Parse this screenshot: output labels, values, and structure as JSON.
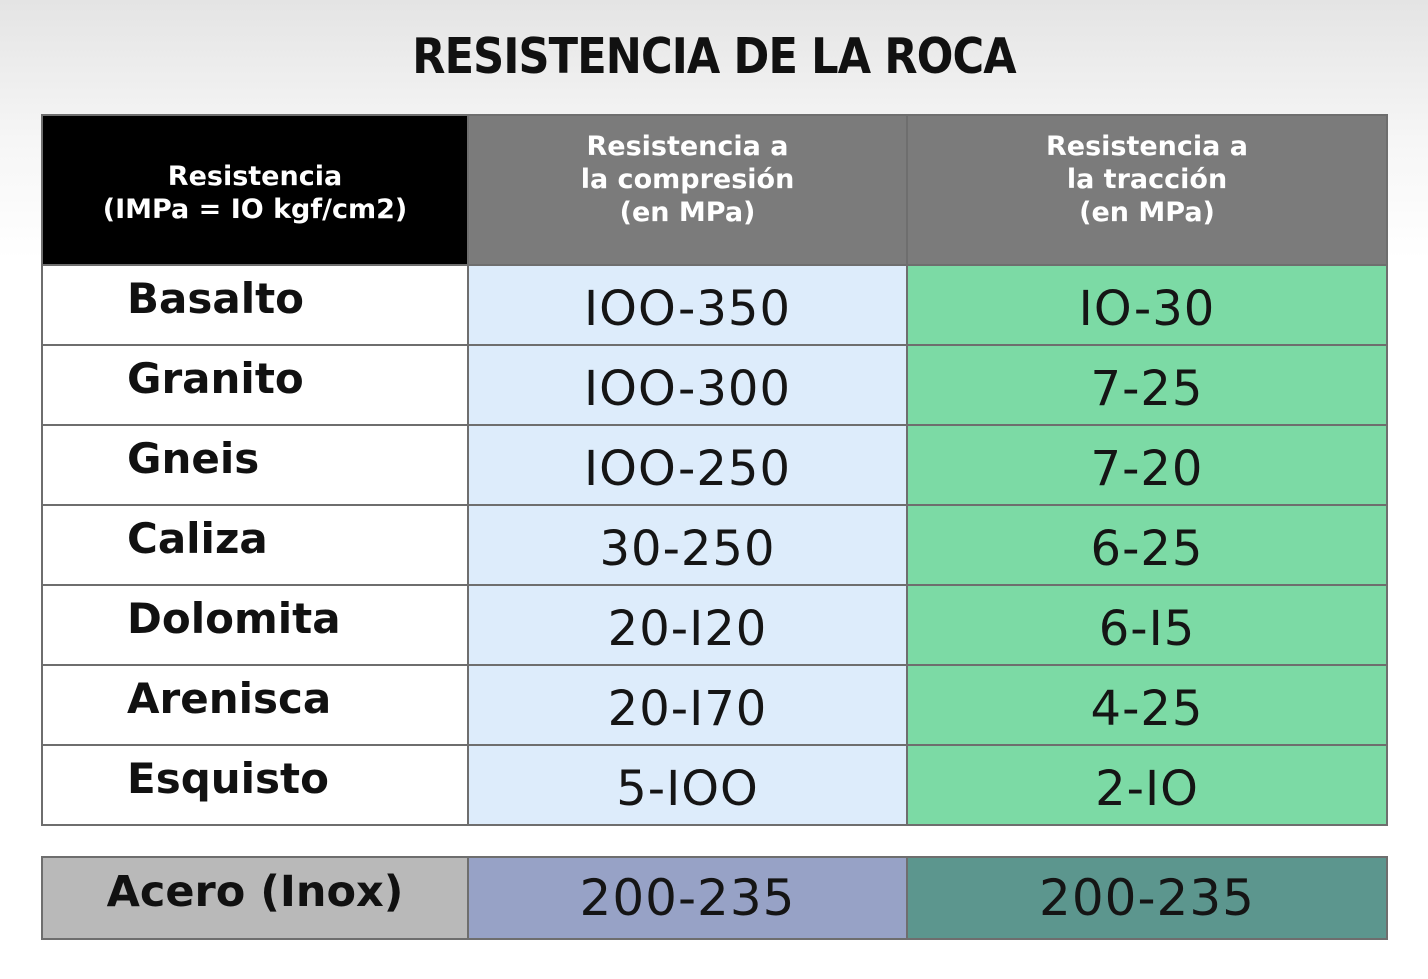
{
  "title": "RESISTENCIA DE LA ROCA",
  "header": {
    "col1": [
      "Resistencia",
      "(IMPa = IO kgf/cm2)"
    ],
    "col2": [
      "Resistencia a",
      "la compresión",
      "(en MPa)"
    ],
    "col3": [
      "Resistencia a",
      "la tracción",
      "(en MPa)"
    ]
  },
  "rows": [
    {
      "rock": "Basalto",
      "compression": "IOO-350",
      "traction": "IO-30"
    },
    {
      "rock": "Granito",
      "compression": "IOO-300",
      "traction": "7-25"
    },
    {
      "rock": "Gneis",
      "compression": "IOO-250",
      "traction": "7-20"
    },
    {
      "rock": "Caliza",
      "compression": "30-250",
      "traction": "6-25"
    },
    {
      "rock": "Dolomita",
      "compression": "20-I20",
      "traction": "6-I5"
    },
    {
      "rock": "Arenisca",
      "compression": "20-I70",
      "traction": "4-25"
    },
    {
      "rock": "Esquisto",
      "compression": "5-IOO",
      "traction": "2-IO"
    }
  ],
  "footer": {
    "material": "Acero  (Inox)",
    "compression": "200-235",
    "traction": "200-235"
  },
  "colors": {
    "header_black": "#000000",
    "header_gray": "#7b7b7b",
    "compression_bg": "#ddecfb",
    "traction_bg": "#7cdaa5",
    "footer_gray": "#b9b9b9",
    "footer_blue": "#97a2c6",
    "footer_teal": "#5c968e"
  }
}
